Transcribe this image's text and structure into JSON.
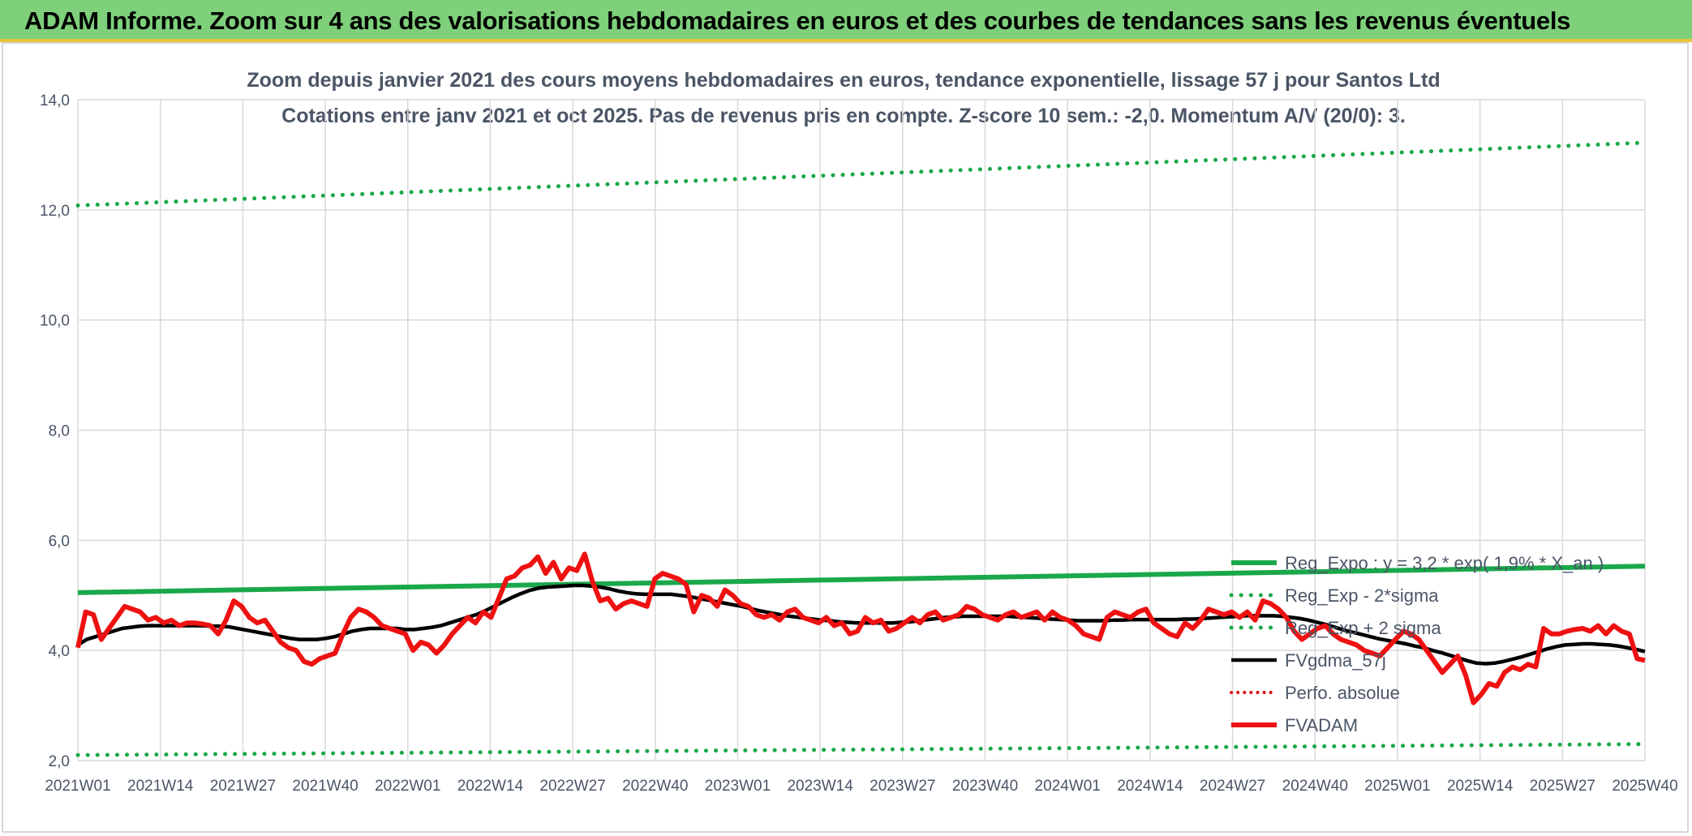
{
  "header": {
    "title": "ADAM Informe. Zoom sur 4 ans des valorisations hebdomadaires en euros et des courbes de tendances sans les revenus éventuels"
  },
  "colors": {
    "banner": "#7ed07a",
    "trend": "#1aa84a",
    "smooth": "#000000",
    "adam": "#ee1111",
    "perfo": "#dd1111",
    "grid": "#d9d9d9"
  },
  "chart_data": {
    "type": "line",
    "title": "Zoom depuis janvier 2021 des cours moyens hebdomadaires en euros, tendance exponentielle, lissage 57 j pour Santos Ltd",
    "subtitle": "Cotations entre janv 2021 et oct 2025. Pas de revenus pris en compte. Z-score 10 sem.: -2,0. Momentum A/V (20/0): 3.",
    "ylim": [
      2.0,
      14.0
    ],
    "y_ticks": [
      "2,0",
      "4,0",
      "6,0",
      "8,0",
      "10,0",
      "12,0",
      "14,0"
    ],
    "x_ticks": [
      "2021W01",
      "2021W14",
      "2021W27",
      "2021W40",
      "2022W01",
      "2022W14",
      "2022W27",
      "2022W40",
      "2023W01",
      "2023W14",
      "2023W27",
      "2023W40",
      "2024W01",
      "2024W14",
      "2024W27",
      "2024W40",
      "2025W01",
      "2025W14",
      "2025W27",
      "2025W40"
    ],
    "grid": true,
    "legend_position": "bottom-right",
    "series": [
      {
        "name": "Reg_Expo : y = 3,2 * exp( 1,9% * X_an )",
        "style": "trend",
        "values": [
          5.05,
          5.53
        ]
      },
      {
        "name": "Reg_Exp - 2*sigma",
        "style": "dotted-green",
        "values": [
          2.1,
          2.3
        ]
      },
      {
        "name": "Reg_Exp + 2 sigma",
        "style": "dotted-green",
        "values": [
          12.08,
          13.22
        ]
      },
      {
        "name": "FVgdma_57j",
        "style": "smooth",
        "values": [
          4.1,
          4.2,
          4.25,
          4.3,
          4.35,
          4.4,
          4.42,
          4.44,
          4.45,
          4.45,
          4.45,
          4.45,
          4.45,
          4.45,
          4.45,
          4.44,
          4.44,
          4.43,
          4.4,
          4.37,
          4.34,
          4.31,
          4.28,
          4.25,
          4.22,
          4.2,
          4.2,
          4.2,
          4.22,
          4.25,
          4.3,
          4.35,
          4.38,
          4.4,
          4.4,
          4.4,
          4.4,
          4.38,
          4.38,
          4.4,
          4.42,
          4.45,
          4.5,
          4.55,
          4.6,
          4.65,
          4.72,
          4.8,
          4.88,
          4.96,
          5.03,
          5.09,
          5.13,
          5.15,
          5.16,
          5.17,
          5.18,
          5.18,
          5.17,
          5.15,
          5.12,
          5.08,
          5.05,
          5.03,
          5.02,
          5.02,
          5.02,
          5.02,
          5.0,
          4.98,
          4.95,
          4.92,
          4.89,
          4.86,
          4.83,
          4.8,
          4.76,
          4.72,
          4.69,
          4.66,
          4.63,
          4.61,
          4.59,
          4.57,
          4.55,
          4.54,
          4.52,
          4.51,
          4.5,
          4.5,
          4.5,
          4.5,
          4.5,
          4.51,
          4.52,
          4.54,
          4.56,
          4.58,
          4.6,
          4.61,
          4.62,
          4.62,
          4.62,
          4.62,
          4.62,
          4.62,
          4.61,
          4.6,
          4.59,
          4.58,
          4.57,
          4.56,
          4.55,
          4.54,
          4.54,
          4.54,
          4.54,
          4.55,
          4.55,
          4.56,
          4.56,
          4.56,
          4.56,
          4.56,
          4.56,
          4.57,
          4.57,
          4.58,
          4.59,
          4.6,
          4.61,
          4.62,
          4.63,
          4.63,
          4.63,
          4.63,
          4.62,
          4.6,
          4.58,
          4.55,
          4.51,
          4.47,
          4.42,
          4.37,
          4.33,
          4.29,
          4.25,
          4.21,
          4.18,
          4.15,
          4.12,
          4.08,
          4.05,
          4.0,
          3.96,
          3.91,
          3.86,
          3.81,
          3.77,
          3.76,
          3.77,
          3.8,
          3.84,
          3.88,
          3.93,
          3.98,
          4.03,
          4.07,
          4.1,
          4.11,
          4.12,
          4.12,
          4.11,
          4.1,
          4.08,
          4.05,
          4.02,
          3.98
        ]
      },
      {
        "name": "Perfo. absolue",
        "style": "dotted-red",
        "values": []
      },
      {
        "name": "FVADAM",
        "style": "adam",
        "values": [
          4.05,
          4.7,
          4.65,
          4.2,
          4.4,
          4.6,
          4.8,
          4.75,
          4.7,
          4.55,
          4.6,
          4.5,
          4.55,
          4.45,
          4.5,
          4.5,
          4.48,
          4.45,
          4.3,
          4.55,
          4.9,
          4.8,
          4.6,
          4.5,
          4.55,
          4.35,
          4.15,
          4.05,
          4.0,
          3.8,
          3.75,
          3.85,
          3.9,
          3.95,
          4.3,
          4.6,
          4.75,
          4.7,
          4.6,
          4.45,
          4.4,
          4.35,
          4.3,
          4.0,
          4.15,
          4.1,
          3.95,
          4.1,
          4.3,
          4.45,
          4.6,
          4.5,
          4.7,
          4.6,
          4.95,
          5.3,
          5.35,
          5.5,
          5.55,
          5.7,
          5.4,
          5.6,
          5.3,
          5.5,
          5.45,
          5.75,
          5.25,
          4.9,
          4.95,
          4.75,
          4.85,
          4.9,
          4.85,
          4.8,
          5.3,
          5.4,
          5.35,
          5.3,
          5.2,
          4.7,
          5.0,
          4.95,
          4.8,
          5.1,
          5.0,
          4.85,
          4.8,
          4.65,
          4.6,
          4.65,
          4.55,
          4.7,
          4.75,
          4.6,
          4.55,
          4.5,
          4.6,
          4.45,
          4.5,
          4.3,
          4.35,
          4.6,
          4.5,
          4.55,
          4.35,
          4.4,
          4.5,
          4.6,
          4.5,
          4.65,
          4.7,
          4.55,
          4.6,
          4.65,
          4.8,
          4.75,
          4.65,
          4.6,
          4.55,
          4.65,
          4.7,
          4.6,
          4.65,
          4.7,
          4.55,
          4.7,
          4.6,
          4.55,
          4.45,
          4.3,
          4.25,
          4.2,
          4.6,
          4.7,
          4.65,
          4.6,
          4.7,
          4.75,
          4.5,
          4.4,
          4.3,
          4.25,
          4.5,
          4.4,
          4.55,
          4.75,
          4.7,
          4.65,
          4.7,
          4.6,
          4.7,
          4.55,
          4.9,
          4.85,
          4.75,
          4.6,
          4.35,
          4.2,
          4.3,
          4.4,
          4.45,
          4.3,
          4.2,
          4.15,
          4.1,
          4.0,
          3.95,
          3.9,
          4.05,
          4.2,
          4.35,
          4.3,
          4.2,
          4.0,
          3.8,
          3.6,
          3.75,
          3.9,
          3.55,
          3.05,
          3.2,
          3.4,
          3.35,
          3.6,
          3.7,
          3.65,
          3.75,
          3.7,
          4.4,
          4.3,
          4.3,
          4.35,
          4.38,
          4.4,
          4.35,
          4.45,
          4.3,
          4.45,
          4.35,
          4.3,
          3.85,
          3.82
        ]
      }
    ]
  }
}
